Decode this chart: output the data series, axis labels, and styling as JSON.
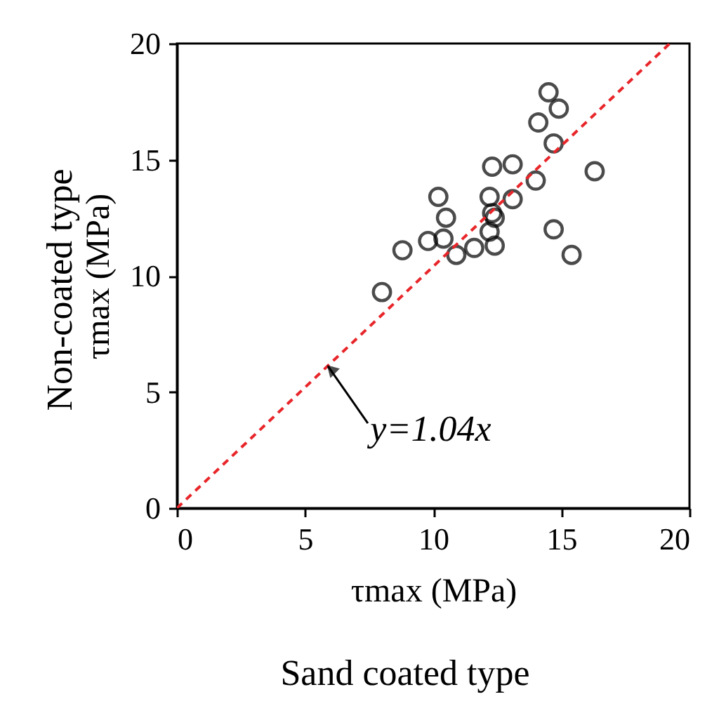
{
  "chart_data": {
    "type": "scatter",
    "xlabel": "τmax (MPa)",
    "ylabel": "τmax (MPa)",
    "xlim": [
      0,
      20
    ],
    "ylim": [
      0,
      20
    ],
    "xticks": [
      0,
      5,
      10,
      15,
      20
    ],
    "yticks": [
      0,
      5,
      10,
      15,
      20
    ],
    "grid": false,
    "series": [
      {
        "color": "#000000",
        "marker": "circle",
        "x": [
          8.0,
          8.8,
          9.8,
          10.4,
          10.2,
          10.5,
          10.9,
          11.6,
          12.3,
          13.1,
          12.2,
          12.3,
          12.4,
          12.2,
          12.4,
          13.1,
          14.0,
          14.1,
          14.5,
          14.9,
          14.7,
          16.3,
          14.7,
          15.4
        ],
        "values": [
          9.3,
          11.1,
          11.5,
          11.6,
          13.4,
          12.5,
          10.9,
          11.2,
          14.7,
          14.8,
          13.4,
          12.7,
          12.5,
          11.9,
          11.3,
          13.3,
          14.1,
          16.6,
          17.9,
          17.2,
          15.7,
          14.5,
          12.0,
          10.9
        ]
      },
      {
        "type": "line",
        "color": "#e8262a",
        "line_style": "dashed",
        "marker": "none",
        "x": [
          0,
          19.23
        ],
        "values": [
          0,
          20
        ]
      }
    ],
    "annotations": [
      {
        "text": "y=1.04x",
        "x": 5.9,
        "y": 6.1
      },
      "Sand coated type",
      "Non-coated type"
    ]
  }
}
